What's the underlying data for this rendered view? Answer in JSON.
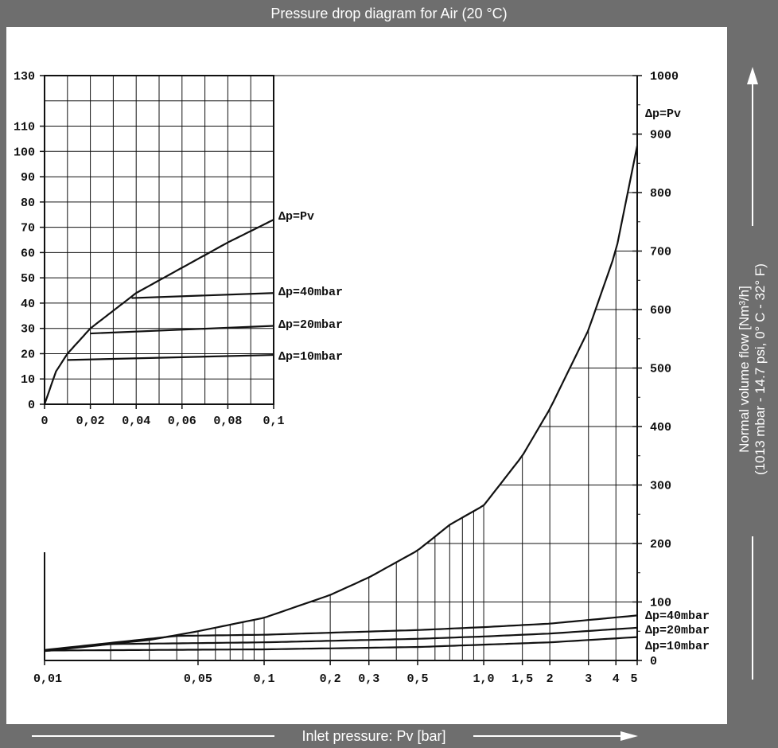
{
  "title": "Pressure drop diagram for Air (20 °C)",
  "ylabel_line1": "Normal volume flow [Nm³/h]",
  "ylabel_line2": "(1013 mbar - 14.7 psi, 0° C - 32° F)",
  "xlabel": "Inlet pressure: Pv [bar]",
  "colors": {
    "frame": "#6e6e6e",
    "plot_bg": "#ffffff",
    "ink": "#111111"
  },
  "chart_data": [
    {
      "type": "line",
      "title": "Pressure drop diagram for Air (20 °C)",
      "xlabel": "Inlet pressure: Pv [bar]",
      "ylabel": "Normal volume flow [Nm³/h]",
      "xscale": "log",
      "xlim": [
        0.01,
        5
      ],
      "ylim": [
        0,
        1000
      ],
      "grid": true,
      "x_tick_labels": [
        "0,01",
        "0,05",
        "0,1",
        "0,2",
        "0,3",
        "0,5",
        "1,0",
        "1,5",
        "2",
        "3",
        "4",
        "5"
      ],
      "x_ticks": [
        0.01,
        0.05,
        0.1,
        0.2,
        0.3,
        0.5,
        1.0,
        1.5,
        2,
        3,
        4,
        5
      ],
      "y_ticks": [
        0,
        100,
        200,
        300,
        400,
        500,
        600,
        700,
        800,
        900,
        1000
      ],
      "series": [
        {
          "name": "Δp=Pv",
          "x": [
            0.01,
            0.03,
            0.05,
            0.1,
            0.2,
            0.3,
            0.5,
            0.7,
            1.0,
            1.5,
            2,
            3,
            4,
            5
          ],
          "y": [
            17,
            35,
            50,
            73,
            112,
            142,
            188,
            232,
            265,
            350,
            430,
            565,
            700,
            880
          ]
        },
        {
          "name": "Δp=40mbar",
          "x": [
            0.01,
            0.04,
            0.1,
            0.5,
            1.0,
            2,
            5
          ],
          "y": [
            18,
            42,
            44,
            52,
            57,
            63,
            77
          ]
        },
        {
          "name": "Δp=20mbar",
          "x": [
            0.01,
            0.02,
            0.1,
            0.5,
            1.0,
            2,
            5
          ],
          "y": [
            16,
            28,
            31,
            37,
            41,
            46,
            56
          ]
        },
        {
          "name": "Δp=10mbar",
          "x": [
            0.01,
            0.1,
            0.5,
            1.0,
            2,
            5
          ],
          "y": [
            17,
            19,
            23,
            27,
            31,
            40
          ]
        }
      ],
      "annotations": [
        "Δp=Pv",
        "Δp=40mbar",
        "Δp=20mbar",
        "Δp=10mbar"
      ],
      "labels": {
        "top": "Δp=Pv",
        "forty": "Δp=40mbar",
        "twenty": "Δp=20mbar",
        "ten": "Δp=10mbar"
      }
    },
    {
      "type": "line",
      "xscale": "linear",
      "xlim": [
        0,
        0.1
      ],
      "ylim": [
        0,
        130
      ],
      "grid": true,
      "x_tick_labels": [
        "0",
        "0,02",
        "0,04",
        "0,06",
        "0,08",
        "0,1"
      ],
      "x_ticks": [
        0,
        0.02,
        0.04,
        0.06,
        0.08,
        0.1
      ],
      "y_tick_labels": [
        "0",
        "10",
        "20",
        "30",
        "40",
        "50",
        "60",
        "70",
        "80",
        "90",
        "100",
        "110",
        "130"
      ],
      "y_ticks": [
        0,
        10,
        20,
        30,
        40,
        50,
        60,
        70,
        80,
        90,
        100,
        110,
        130
      ],
      "series": [
        {
          "name": "Δp=Pv",
          "x": [
            0,
            0.005,
            0.01,
            0.02,
            0.03,
            0.04,
            0.05,
            0.06,
            0.08,
            0.1
          ],
          "y": [
            0,
            13,
            20,
            30,
            37,
            44,
            49,
            54,
            64,
            73
          ]
        },
        {
          "name": "Δp=40mbar",
          "x": [
            0.038,
            0.1
          ],
          "y": [
            42,
            44
          ]
        },
        {
          "name": "Δp=20mbar",
          "x": [
            0.02,
            0.1
          ],
          "y": [
            28,
            31
          ]
        },
        {
          "name": "Δp=10mbar",
          "x": [
            0.01,
            0.1
          ],
          "y": [
            17.5,
            19.5
          ]
        }
      ],
      "labels": {
        "top": "Δp=Pv",
        "forty": "Δp=40mbar",
        "twenty": "Δp=20mbar",
        "ten": "Δp=10mbar"
      }
    }
  ]
}
